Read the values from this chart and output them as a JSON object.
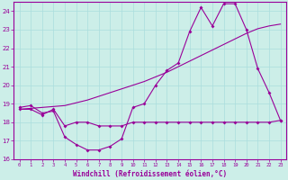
{
  "xlabel": "Windchill (Refroidissement éolien,°C)",
  "xlim": [
    -0.5,
    23.5
  ],
  "ylim": [
    16,
    24.5
  ],
  "yticks": [
    16,
    17,
    18,
    19,
    20,
    21,
    22,
    23,
    24
  ],
  "xticks": [
    0,
    1,
    2,
    3,
    4,
    5,
    6,
    7,
    8,
    9,
    10,
    11,
    12,
    13,
    14,
    15,
    16,
    17,
    18,
    19,
    20,
    21,
    22,
    23
  ],
  "bg_color": "#cceee8",
  "grid_color": "#aadddd",
  "line_color": "#990099",
  "line1_x": [
    0,
    1,
    2,
    3,
    4,
    5,
    6,
    7,
    8,
    9,
    10,
    11,
    12,
    13,
    14,
    15,
    16,
    17,
    18,
    19,
    20,
    21,
    22,
    23
  ],
  "line1_y": [
    18.8,
    18.9,
    18.5,
    18.6,
    17.2,
    16.8,
    16.5,
    16.5,
    16.7,
    17.1,
    18.8,
    19.0,
    20.0,
    20.8,
    21.2,
    22.9,
    24.2,
    23.2,
    24.4,
    24.4,
    23.0,
    20.9,
    19.6,
    18.1
  ],
  "line2_x": [
    0,
    1,
    2,
    3,
    4,
    5,
    6,
    7,
    8,
    9,
    10,
    11,
    12,
    13,
    14,
    15,
    16,
    17,
    18,
    19,
    20,
    21,
    22,
    23
  ],
  "line2_y": [
    18.7,
    18.7,
    18.4,
    18.7,
    17.8,
    18.0,
    18.0,
    17.8,
    17.8,
    17.8,
    18.0,
    18.0,
    18.0,
    18.0,
    18.0,
    18.0,
    18.0,
    18.0,
    18.0,
    18.0,
    18.0,
    18.0,
    18.0,
    18.1
  ],
  "line3_x": [
    0,
    1,
    2,
    3,
    4,
    5,
    6,
    7,
    8,
    9,
    10,
    11,
    12,
    13,
    14,
    15,
    16,
    17,
    18,
    19,
    20,
    21,
    22,
    23
  ],
  "line3_y": [
    18.7,
    18.75,
    18.8,
    18.85,
    18.9,
    19.05,
    19.2,
    19.4,
    19.6,
    19.8,
    20.0,
    20.2,
    20.45,
    20.7,
    21.0,
    21.3,
    21.6,
    21.9,
    22.2,
    22.5,
    22.8,
    23.05,
    23.2,
    23.3
  ]
}
